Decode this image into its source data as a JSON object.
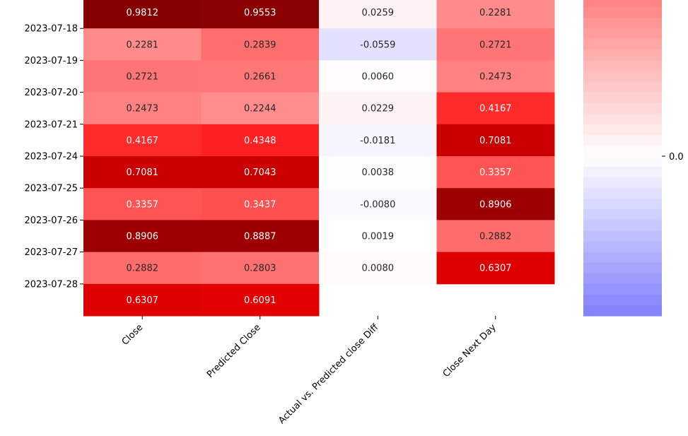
{
  "chart_data": {
    "type": "heatmap",
    "title": "",
    "row_labels": [
      "",
      "2023-07-18",
      "2023-07-19",
      "2023-07-20",
      "2023-07-21",
      "2023-07-24",
      "2023-07-25",
      "2023-07-26",
      "2023-07-27",
      "2023-07-28"
    ],
    "columns": [
      "Close",
      "Predicted Close",
      "Actual vs. Predicted close Diff",
      "Close Next Day"
    ],
    "values": [
      [
        0.9812,
        0.9553,
        0.0259,
        0.2281
      ],
      [
        0.2281,
        0.2839,
        -0.0559,
        0.2721
      ],
      [
        0.2721,
        0.2661,
        0.006,
        0.2473
      ],
      [
        0.2473,
        0.2244,
        0.0229,
        0.4167
      ],
      [
        0.4167,
        0.4348,
        -0.0181,
        0.7081
      ],
      [
        0.7081,
        0.7043,
        0.0038,
        0.3357
      ],
      [
        0.3357,
        0.3437,
        -0.008,
        0.8906
      ],
      [
        0.8906,
        0.8887,
        0.0019,
        0.2882
      ],
      [
        0.2882,
        0.2803,
        0.008,
        0.6307
      ],
      [
        0.6307,
        0.6091,
        null,
        null
      ]
    ],
    "value_labels": [
      [
        "0.9812",
        "0.9553",
        "0.0259",
        "0.2281"
      ],
      [
        "0.2281",
        "0.2839",
        "-0.0559",
        "0.2721"
      ],
      [
        "0.2721",
        "0.2661",
        "0.0060",
        "0.2473"
      ],
      [
        "0.2473",
        "0.2244",
        "0.0229",
        "0.4167"
      ],
      [
        "0.4167",
        "0.4348",
        "-0.0181",
        "0.7081"
      ],
      [
        "0.7081",
        "0.7043",
        "0.0038",
        "0.3357"
      ],
      [
        "0.3357",
        "0.3437",
        "-0.0080",
        "0.8906"
      ],
      [
        "0.8906",
        "0.8887",
        "0.0019",
        "0.2882"
      ],
      [
        "0.2882",
        "0.2803",
        "0.0080",
        "0.6307"
      ],
      [
        "0.6307",
        "0.6091",
        "",
        ""
      ]
    ],
    "colorscale": "bwr",
    "color_range": [
      -1,
      1
    ],
    "colorbar": {
      "tick_values": [
        0.0
      ],
      "tick_labels": [
        "0.0"
      ]
    },
    "colors": {
      "negative_end": "#0000ff",
      "center": "#ffffff",
      "positive_end": "#ff0000",
      "max_dark": "#800000"
    }
  }
}
